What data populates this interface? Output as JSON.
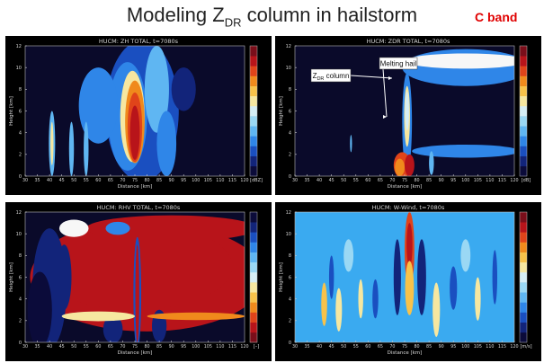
{
  "slide": {
    "title_pre": "Modeling Z",
    "title_sub": "DR",
    "title_post": " column in hailstorm",
    "badge": "C band",
    "badge_color": "#e00000"
  },
  "chart_data": [
    {
      "type": "heatmap",
      "title": "HUCM: ZH TOTAL, t=7080s",
      "xlabel": "Distance [km]",
      "ylabel": "Height [km]",
      "xlim": [
        30,
        120
      ],
      "ylim": [
        0,
        12
      ],
      "x_ticks": [
        30,
        35,
        40,
        45,
        50,
        55,
        60,
        65,
        70,
        75,
        80,
        85,
        90,
        95,
        100,
        105,
        110,
        115,
        120
      ],
      "y_ticks": [
        0,
        2,
        4,
        6,
        8,
        10,
        12
      ],
      "colorbar_unit": "[dBZ]",
      "colorbar_ticks": [],
      "colorbar_palette": "reflectivity",
      "background_color": "#0a0a2a",
      "annotations": []
    },
    {
      "type": "heatmap",
      "title": "HUCM: ZDR TOTAL, t=7080s",
      "xlabel": "Distance [km]",
      "ylabel": "Height [km]",
      "xlim": [
        30,
        120
      ],
      "ylim": [
        0,
        12
      ],
      "x_ticks": [
        30,
        35,
        40,
        45,
        50,
        55,
        60,
        65,
        70,
        75,
        80,
        85,
        90,
        95,
        100,
        105,
        110,
        115,
        120
      ],
      "y_ticks": [
        0,
        2,
        4,
        6,
        8,
        10,
        12
      ],
      "colorbar_unit": "[dB]",
      "colorbar_ticks": [],
      "colorbar_palette": "zdr",
      "background_color": "#0a0a2a",
      "annotations": [
        {
          "text_pre": "Z",
          "text_sub": "DR",
          "text_post": " column"
        },
        {
          "text_pre": "Melting hail",
          "text_sub": "",
          "text_post": ""
        }
      ]
    },
    {
      "type": "heatmap",
      "title": "HUCM: RHV TOTAL, t=7080s",
      "xlabel": "Distance [km]",
      "ylabel": "Height [km]",
      "xlim": [
        30,
        120
      ],
      "ylim": [
        0,
        12
      ],
      "x_ticks": [
        30,
        35,
        40,
        45,
        50,
        55,
        60,
        65,
        70,
        75,
        80,
        85,
        90,
        95,
        100,
        105,
        110,
        115,
        120
      ],
      "y_ticks": [
        0,
        2,
        4,
        6,
        8,
        10,
        12
      ],
      "colorbar_unit": "[–]",
      "colorbar_ticks": [],
      "colorbar_palette": "rhv",
      "background_color": "#0a0a2a",
      "annotations": []
    },
    {
      "type": "heatmap",
      "title": "HUCM: W-Wind, t=7080s",
      "xlabel": "Distance [km]",
      "ylabel": "Height [km]",
      "xlim": [
        30,
        120
      ],
      "ylim": [
        0,
        12
      ],
      "x_ticks": [
        30,
        35,
        40,
        45,
        50,
        55,
        60,
        65,
        70,
        75,
        80,
        85,
        90,
        95,
        100,
        105,
        110,
        115,
        120
      ],
      "y_ticks": [
        0,
        2,
        4,
        6,
        8,
        10,
        12
      ],
      "colorbar_unit": "[m/s]",
      "colorbar_ticks": [],
      "colorbar_palette": "wind",
      "background_color": "#3aaaf0",
      "annotations": []
    }
  ]
}
